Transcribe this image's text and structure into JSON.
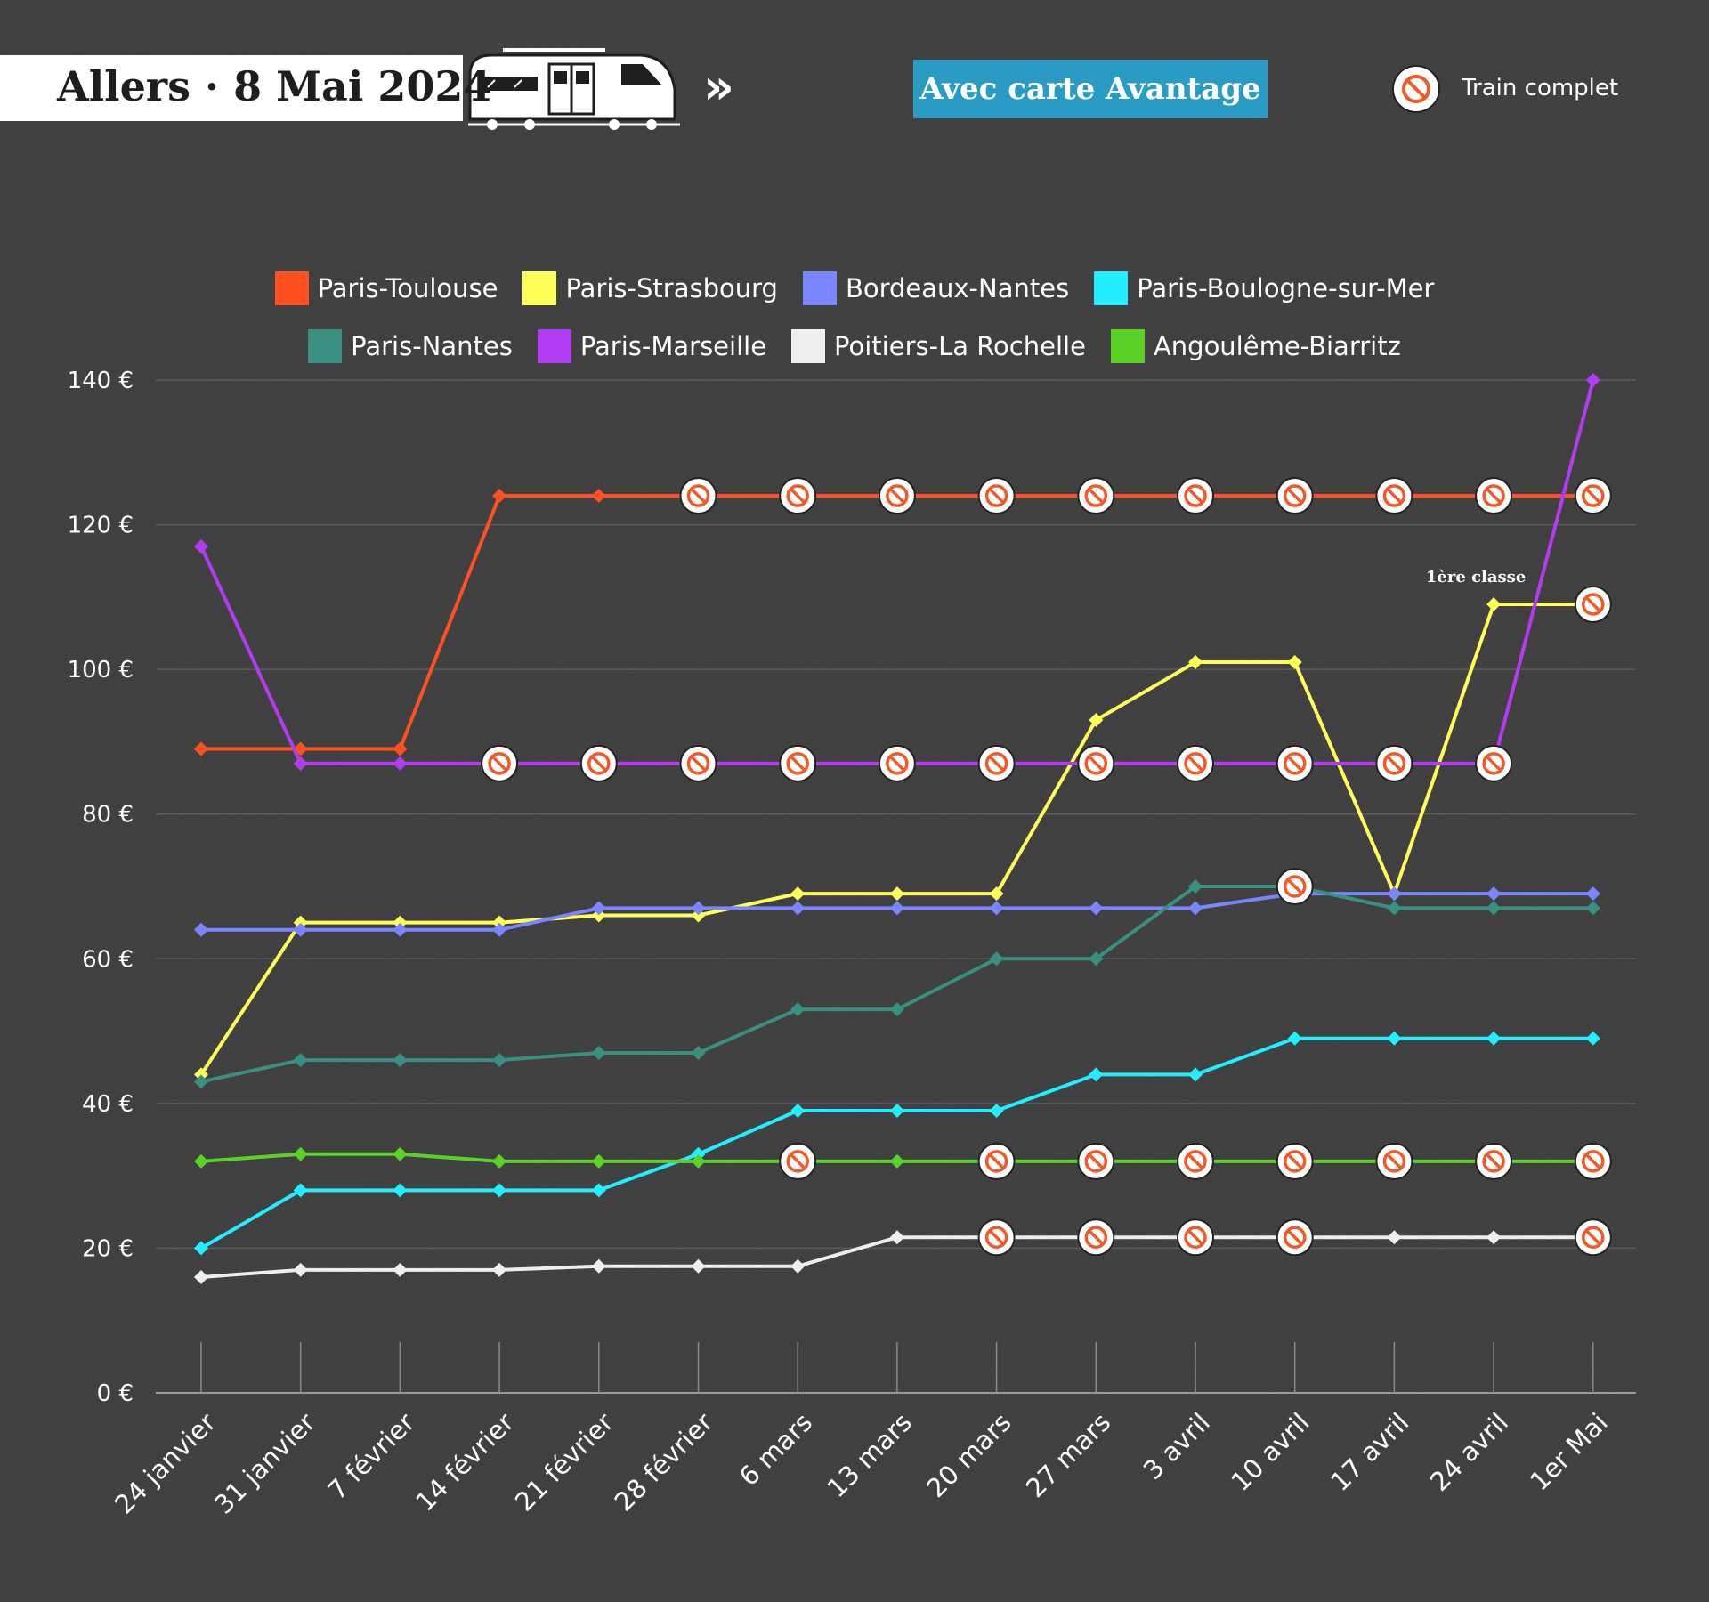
{
  "header": {
    "title": "Allers · 8 Mai 2024",
    "badge": "Avec carte Avantage",
    "full_train_label": "Train complet",
    "chevrons": "»"
  },
  "chart_data": {
    "type": "line",
    "title": "Allers · 8 Mai 2024",
    "subtitle": "Avec carte Avantage",
    "xlabel": "",
    "ylabel": "",
    "ylim": [
      0,
      140
    ],
    "yticks": [
      0,
      20,
      40,
      60,
      80,
      100,
      120,
      140
    ],
    "ytick_labels": [
      "0 €",
      "20 €",
      "40 €",
      "60 €",
      "80 €",
      "100 €",
      "120 €",
      "140 €"
    ],
    "grid": true,
    "legend_position": "top-center",
    "categories": [
      "24 janvier",
      "31 janvier",
      "7 février",
      "14 février",
      "21 février",
      "28 février",
      "6 mars",
      "13 mars",
      "20 mars",
      "27 mars",
      "3 avril",
      "10 avril",
      "17 avril",
      "24 avril",
      "1er Mai"
    ],
    "series": [
      {
        "name": "Paris-Toulouse",
        "color": "#ff5022",
        "values": [
          89,
          89,
          89,
          124,
          124,
          124,
          124,
          124,
          124,
          124,
          124,
          124,
          124,
          124,
          124
        ],
        "full": [
          5,
          6,
          7,
          8,
          9,
          10,
          11,
          12,
          13,
          14
        ]
      },
      {
        "name": "Paris-Strasbourg",
        "color": "#ffff5a",
        "values": [
          44,
          65,
          65,
          65,
          66,
          66,
          69,
          69,
          69,
          93,
          101,
          101,
          69,
          109,
          109
        ],
        "full": [
          14
        ]
      },
      {
        "name": "Bordeaux-Nantes",
        "color": "#7a86ff",
        "values": [
          64,
          64,
          64,
          64,
          67,
          67,
          67,
          67,
          67,
          67,
          67,
          69,
          69,
          69,
          69
        ],
        "full": []
      },
      {
        "name": "Paris-Boulogne-sur-Mer",
        "color": "#22eeff",
        "values": [
          20,
          28,
          28,
          28,
          28,
          33,
          39,
          39,
          39,
          44,
          44,
          49,
          49,
          49,
          49
        ],
        "full": []
      },
      {
        "name": "Paris-Nantes",
        "color": "#3a9080",
        "values": [
          43,
          46,
          46,
          46,
          47,
          47,
          53,
          53,
          60,
          60,
          70,
          70,
          67,
          67,
          67
        ],
        "full": [
          11
        ]
      },
      {
        "name": "Paris-Marseille",
        "color": "#b23cf0",
        "values": [
          117,
          87,
          87,
          87,
          87,
          87,
          87,
          87,
          87,
          87,
          87,
          87,
          87,
          87,
          140
        ],
        "full": [
          3,
          4,
          5,
          6,
          7,
          8,
          9,
          10,
          11,
          12,
          13
        ]
      },
      {
        "name": "Poitiers-La Rochelle",
        "color": "#eeeeee",
        "values": [
          16,
          17,
          17,
          17,
          17.5,
          17.5,
          17.5,
          21.5,
          21.5,
          21.5,
          21.5,
          21.5,
          21.5,
          21.5,
          21.5
        ],
        "full": [
          8,
          9,
          10,
          11,
          14
        ]
      },
      {
        "name": "Angoulême-Biarritz",
        "color": "#5cd128",
        "values": [
          32,
          33,
          33,
          32,
          32,
          32,
          32,
          32,
          32,
          32,
          32,
          32,
          32,
          32,
          32
        ],
        "full": [
          6,
          8,
          9,
          10,
          11,
          12,
          13,
          14
        ]
      }
    ],
    "annotations": [
      {
        "text": "1ère classe",
        "series": "Paris-Strasbourg",
        "index": 13
      }
    ]
  }
}
